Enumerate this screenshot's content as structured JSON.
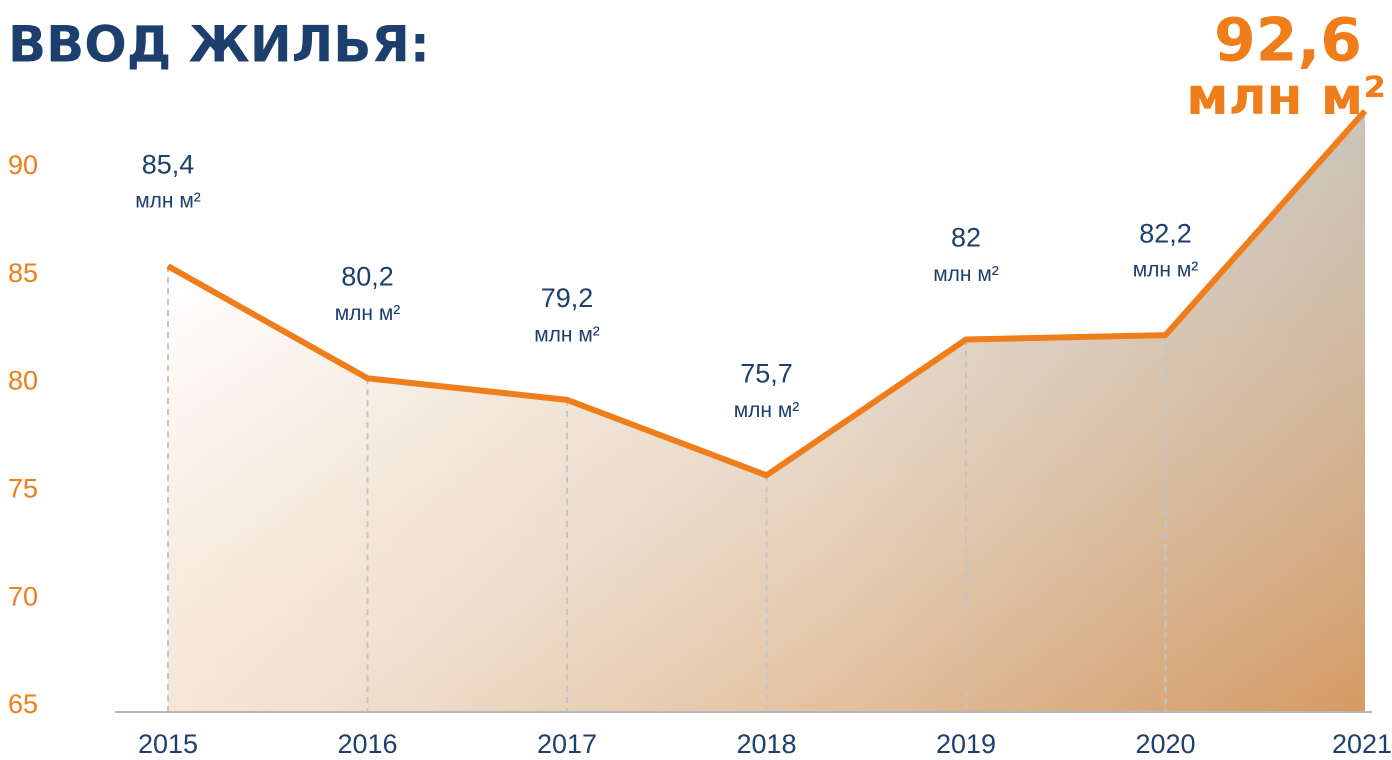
{
  "chart_data": {
    "type": "line",
    "title": "ВВОД ЖИЛЬЯ:",
    "categories": [
      "2015",
      "2016",
      "2017",
      "2018",
      "2019",
      "2020",
      "2021"
    ],
    "values": [
      85.4,
      80.2,
      79.2,
      75.7,
      82,
      82.2,
      92.6
    ],
    "value_labels": [
      "85,4",
      "80,2",
      "79,2",
      "75,7",
      "82",
      "82,2",
      "92,6"
    ],
    "unit": "млн м²",
    "color": "#ef7d1a",
    "ylim": [
      65,
      93
    ],
    "yticks": [
      65,
      70,
      75,
      80,
      85,
      90
    ],
    "grid": false
  }
}
